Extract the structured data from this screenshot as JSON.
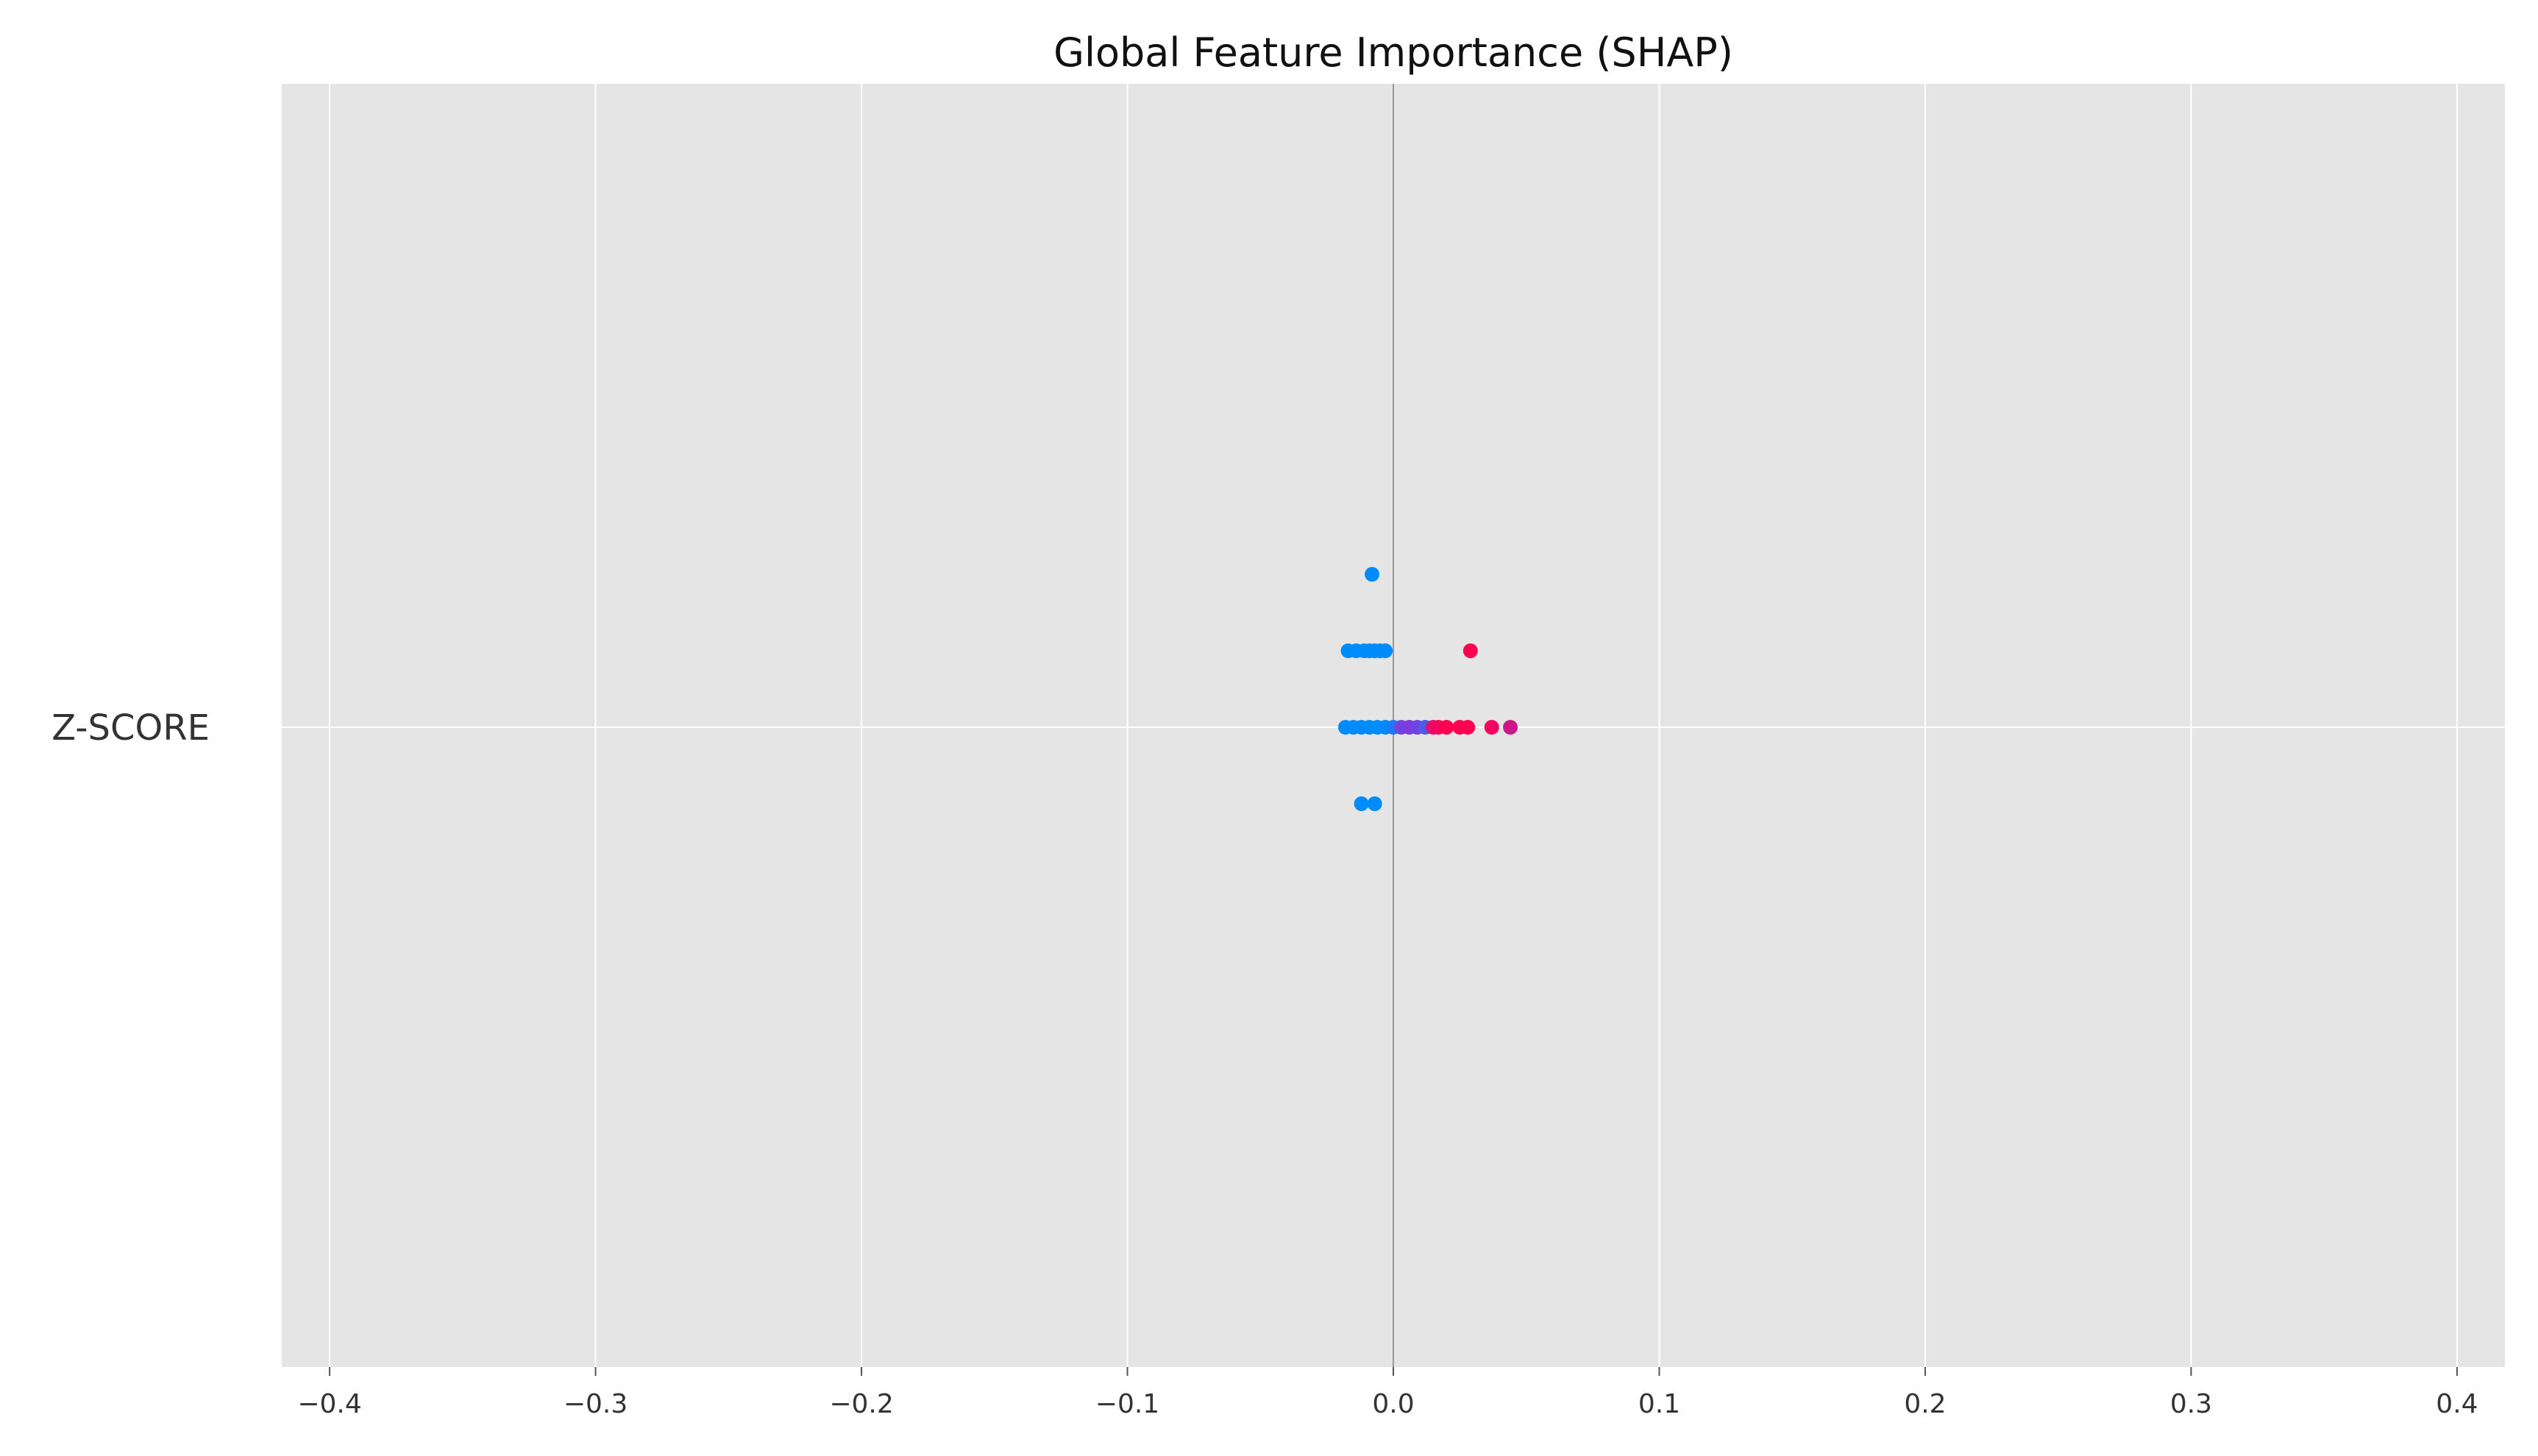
{
  "chart_data": {
    "type": "scatter",
    "title": "Global Feature Importance (SHAP)",
    "xlabel": "",
    "ylabel": "",
    "xlim": [
      -0.418,
      0.418
    ],
    "x_ticks": [
      -0.4,
      -0.3,
      -0.2,
      -0.1,
      0.0,
      0.1,
      0.2,
      0.3,
      0.4
    ],
    "x_tick_labels": [
      "−0.4",
      "−0.3",
      "−0.2",
      "−0.1",
      "0.0",
      "0.1",
      "0.2",
      "0.3",
      "0.4"
    ],
    "features": [
      "Z-SCORE"
    ],
    "grid": true,
    "legend": "none",
    "color_low": "#008bfb",
    "color_high": "#ff0052",
    "point_color_meaning": "low-to-high feature value",
    "points": [
      {
        "feature": "Z-SCORE",
        "x": -0.008,
        "jitter": 2,
        "level": 0.0
      },
      {
        "feature": "Z-SCORE",
        "x": -0.017,
        "jitter": 1,
        "level": 0.0
      },
      {
        "feature": "Z-SCORE",
        "x": -0.014,
        "jitter": 1,
        "level": 0.0
      },
      {
        "feature": "Z-SCORE",
        "x": -0.011,
        "jitter": 1,
        "level": 0.0
      },
      {
        "feature": "Z-SCORE",
        "x": -0.009,
        "jitter": 1,
        "level": 0.0
      },
      {
        "feature": "Z-SCORE",
        "x": -0.007,
        "jitter": 1,
        "level": 0.0
      },
      {
        "feature": "Z-SCORE",
        "x": -0.005,
        "jitter": 1,
        "level": 0.0
      },
      {
        "feature": "Z-SCORE",
        "x": -0.003,
        "jitter": 1,
        "level": 0.0
      },
      {
        "feature": "Z-SCORE",
        "x": 0.029,
        "jitter": 1,
        "level": 1.0
      },
      {
        "feature": "Z-SCORE",
        "x": -0.018,
        "jitter": 0,
        "level": 0.0
      },
      {
        "feature": "Z-SCORE",
        "x": -0.015,
        "jitter": 0,
        "level": 0.0
      },
      {
        "feature": "Z-SCORE",
        "x": -0.012,
        "jitter": 0,
        "level": 0.0
      },
      {
        "feature": "Z-SCORE",
        "x": -0.009,
        "jitter": 0,
        "level": 0.0
      },
      {
        "feature": "Z-SCORE",
        "x": -0.006,
        "jitter": 0,
        "level": 0.0
      },
      {
        "feature": "Z-SCORE",
        "x": -0.003,
        "jitter": 0,
        "level": 0.0
      },
      {
        "feature": "Z-SCORE",
        "x": 0.0,
        "jitter": 0,
        "level": 0.1
      },
      {
        "feature": "Z-SCORE",
        "x": 0.003,
        "jitter": 0,
        "level": 0.45
      },
      {
        "feature": "Z-SCORE",
        "x": 0.006,
        "jitter": 0,
        "level": 0.5
      },
      {
        "feature": "Z-SCORE",
        "x": 0.009,
        "jitter": 0,
        "level": 0.45
      },
      {
        "feature": "Z-SCORE",
        "x": 0.012,
        "jitter": 0,
        "level": 0.3
      },
      {
        "feature": "Z-SCORE",
        "x": 0.015,
        "jitter": 0,
        "level": 0.9
      },
      {
        "feature": "Z-SCORE",
        "x": 0.017,
        "jitter": 0,
        "level": 0.95
      },
      {
        "feature": "Z-SCORE",
        "x": 0.02,
        "jitter": 0,
        "level": 1.0
      },
      {
        "feature": "Z-SCORE",
        "x": 0.025,
        "jitter": 0,
        "level": 1.0
      },
      {
        "feature": "Z-SCORE",
        "x": 0.028,
        "jitter": 0,
        "level": 1.0
      },
      {
        "feature": "Z-SCORE",
        "x": 0.037,
        "jitter": 0,
        "level": 0.95
      },
      {
        "feature": "Z-SCORE",
        "x": 0.044,
        "jitter": 0,
        "level": 0.8
      },
      {
        "feature": "Z-SCORE",
        "x": -0.012,
        "jitter": -1,
        "level": 0.0
      },
      {
        "feature": "Z-SCORE",
        "x": -0.007,
        "jitter": -1,
        "level": 0.0
      }
    ]
  }
}
